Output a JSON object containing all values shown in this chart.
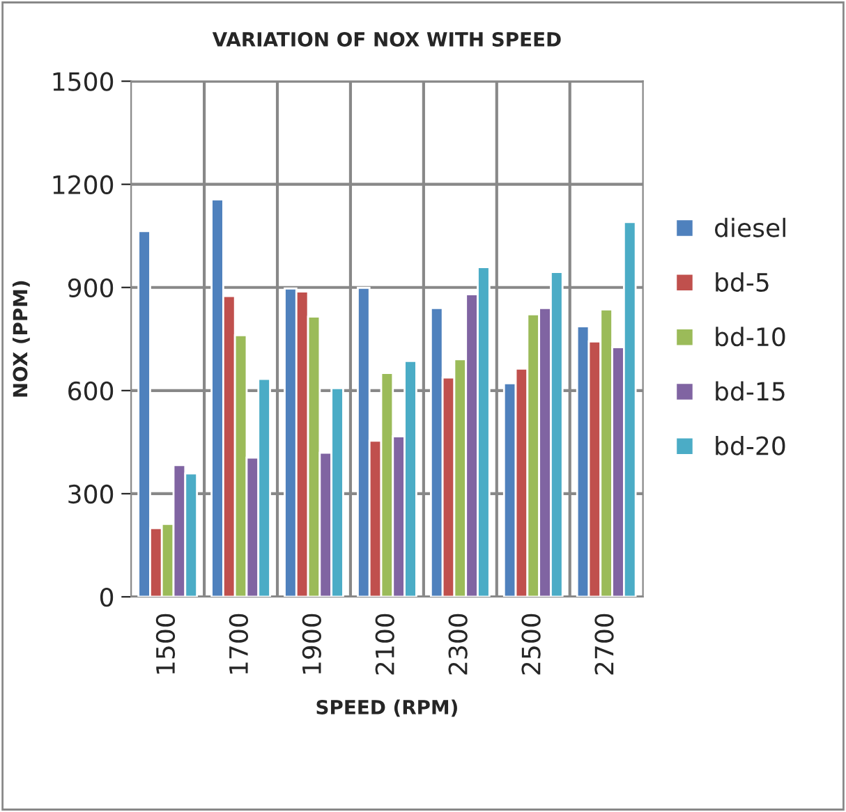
{
  "chart_data": {
    "type": "bar",
    "title": "VARIATION OF NOX WITH SPEED",
    "xlabel": "SPEED (RPM)",
    "ylabel": "NOX (PPM)",
    "categories": [
      "1500",
      "1700",
      "1900",
      "2100",
      "2300",
      "2500",
      "2700"
    ],
    "ylim": [
      0,
      1500
    ],
    "yticks": [
      0,
      300,
      600,
      900,
      1200,
      1500
    ],
    "grid": true,
    "legend": "right",
    "series": [
      {
        "name": "diesel",
        "color": "#4f81bd",
        "values": [
          1064,
          1156,
          897,
          899,
          840,
          621,
          787
        ]
      },
      {
        "name": "bd-5",
        "color": "#c0504d",
        "values": [
          200,
          875,
          888,
          454,
          638,
          664,
          743
        ]
      },
      {
        "name": "bd-10",
        "color": "#9bbb59",
        "values": [
          212,
          761,
          815,
          651,
          691,
          822,
          836
        ]
      },
      {
        "name": "bd-15",
        "color": "#8064a2",
        "values": [
          383,
          405,
          419,
          467,
          880,
          840,
          726
        ]
      },
      {
        "name": "bd-20",
        "color": "#4bacc6",
        "values": [
          359,
          634,
          607,
          686,
          959,
          945,
          1090
        ]
      }
    ]
  }
}
